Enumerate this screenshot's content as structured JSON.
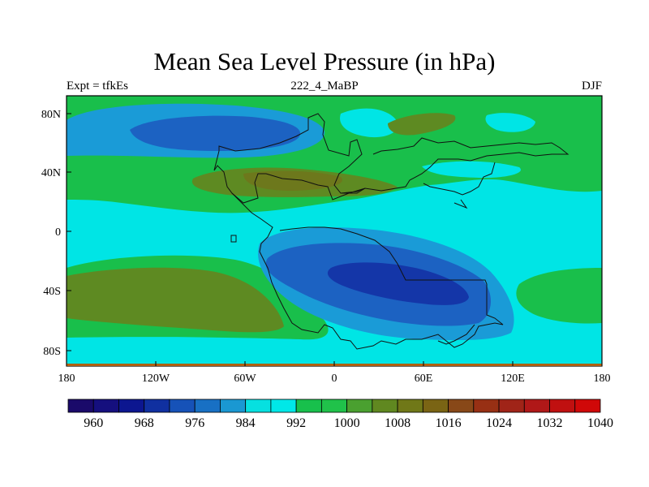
{
  "title": "Mean Sea Level Pressure (in hPa)",
  "experiment": "Expt = tfkEs",
  "period": "222_4_MaBP",
  "season": "DJF",
  "axes": {
    "x_ticks": [
      "180",
      "120W",
      "60W",
      "0",
      "60E",
      "120E",
      "180"
    ],
    "y_ticks": [
      "80N",
      "40N",
      "0",
      "40S",
      "80S"
    ]
  },
  "colorbar": {
    "labels": [
      "960",
      "968",
      "976",
      "984",
      "992",
      "1000",
      "1008",
      "1016",
      "1024",
      "1032",
      "1040"
    ],
    "colors": [
      "#1a0a6a",
      "#150f7e",
      "#0c1690",
      "#1030a0",
      "#1652b8",
      "#1870c4",
      "#1a98d2",
      "#06e0e0",
      "#00e8e8",
      "#18c04c",
      "#20c24a",
      "#4aa030",
      "#608820",
      "#707818",
      "#7a6414",
      "#884818",
      "#983014",
      "#a02418",
      "#b01818",
      "#c01010",
      "#d00808"
    ]
  },
  "map_colors": {
    "ocean_cyan": "#00e5e5",
    "green": "#19bf4b",
    "light_blue": "#1a9bd7",
    "mid_blue": "#1c62c2",
    "deep_blue": "#1436a8",
    "olive": "#5e8a22",
    "brown_olive": "#7a6a18"
  }
}
